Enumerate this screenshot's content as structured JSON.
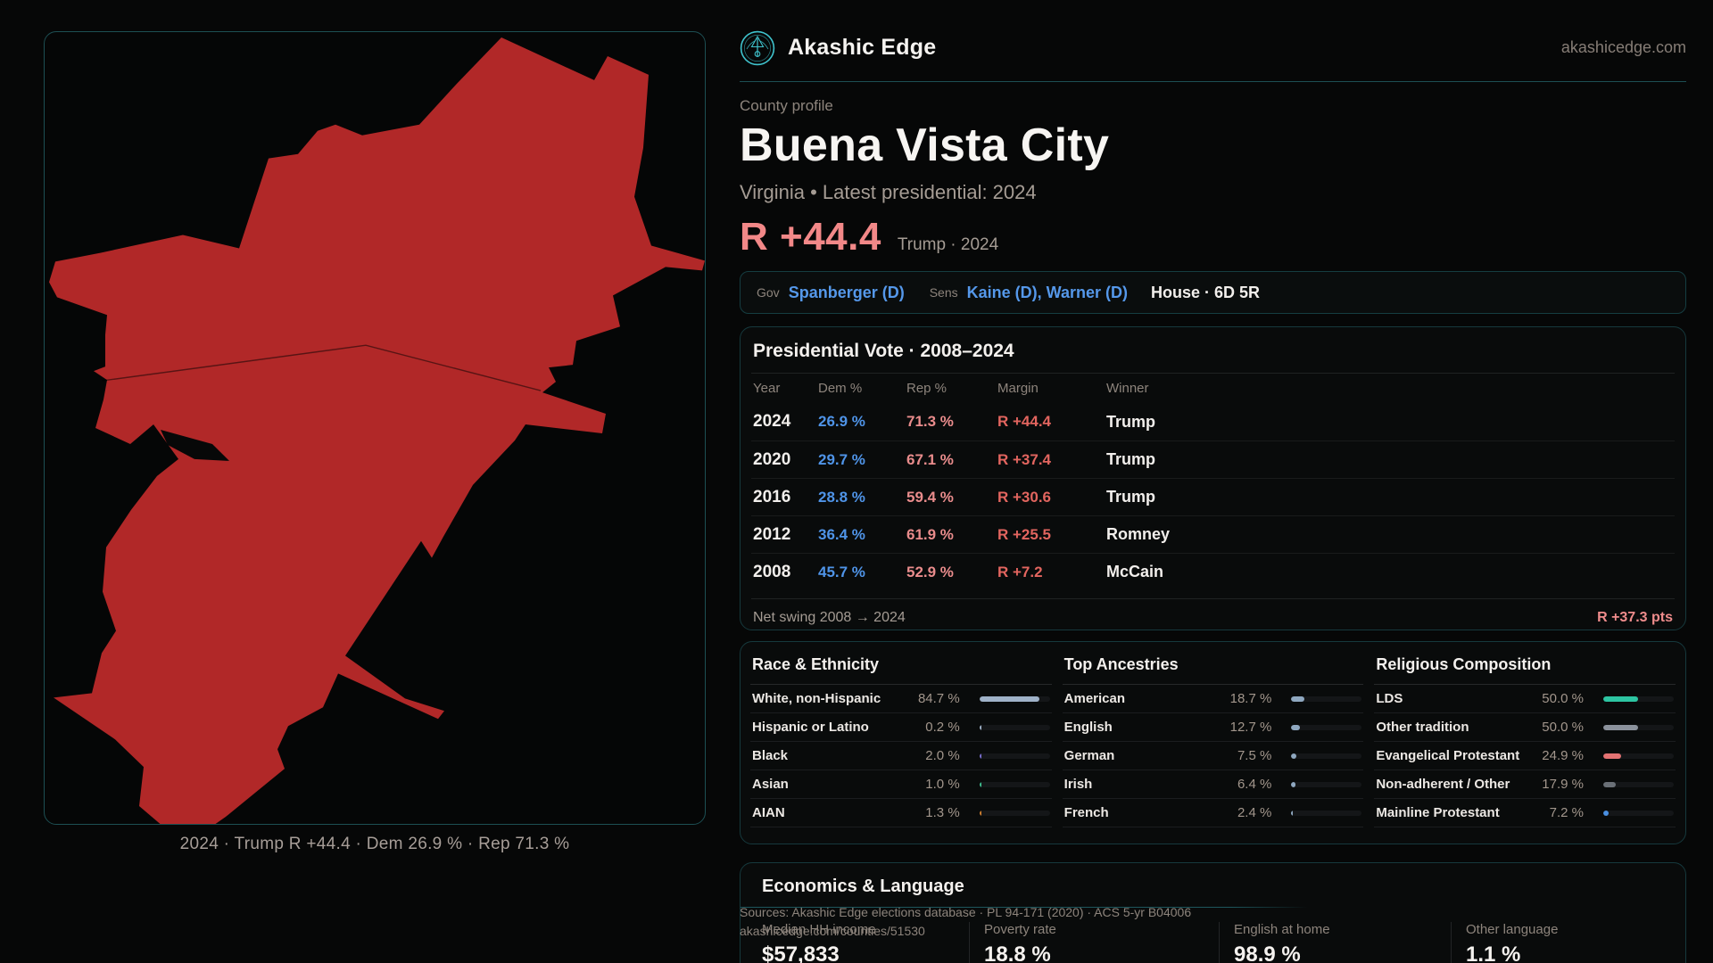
{
  "brand": {
    "name": "Akashic Edge",
    "domain": "akashicedge.com"
  },
  "page": {
    "eyebrow": "County profile",
    "title": "Buena Vista City",
    "subtitle": "Virginia • Latest presidential: 2024",
    "headline_margin": "R +44.4",
    "headline_note": "Trump · 2024"
  },
  "officials": {
    "gov_label": "Gov",
    "gov": "Spanberger (D)",
    "sens_label": "Sens",
    "sens": "Kaine (D), Warner (D)",
    "house": "House · 6D 5R"
  },
  "map": {
    "caption": "2024 · Trump R +44.4 · Dem 26.9 % · Rep 71.3 %",
    "fill_color": "#b12828"
  },
  "presidential": {
    "title": "Presidential Vote · 2008–2024",
    "columns": [
      "Year",
      "Dem %",
      "Rep %",
      "Margin",
      "Winner"
    ],
    "rows": [
      {
        "year": "2024",
        "dem": "26.9 %",
        "rep": "71.3 %",
        "margin": "R +44.4",
        "winner": "Trump"
      },
      {
        "year": "2020",
        "dem": "29.7 %",
        "rep": "67.1 %",
        "margin": "R +37.4",
        "winner": "Trump"
      },
      {
        "year": "2016",
        "dem": "28.8 %",
        "rep": "59.4 %",
        "margin": "R +30.6",
        "winner": "Trump"
      },
      {
        "year": "2012",
        "dem": "36.4 %",
        "rep": "61.9 %",
        "margin": "R +25.5",
        "winner": "Romney"
      },
      {
        "year": "2008",
        "dem": "45.7 %",
        "rep": "52.9 %",
        "margin": "R +7.2",
        "winner": "McCain"
      }
    ],
    "net_swing_label": "Net swing 2008 → 2024",
    "net_swing_value": "R +37.3 pts"
  },
  "panels": [
    {
      "title": "Race & Ethnicity",
      "rows": [
        {
          "label": "White, non-Hispanic",
          "value": "84.7 %",
          "pct": 84.7,
          "color": "#9fb2c8"
        },
        {
          "label": "Hispanic or Latino",
          "value": "0.2 %",
          "pct": 0.2,
          "color": "#9fb2c8"
        },
        {
          "label": "Black",
          "value": "2.0 %",
          "pct": 2.0,
          "color": "#7a6fd0"
        },
        {
          "label": "Asian",
          "value": "1.0 %",
          "pct": 1.0,
          "color": "#3fbf8f"
        },
        {
          "label": "AIAN",
          "value": "1.3 %",
          "pct": 1.3,
          "color": "#cf7f2f"
        }
      ]
    },
    {
      "title": "Top Ancestries",
      "rows": [
        {
          "label": "American",
          "value": "18.7 %",
          "pct": 18.7,
          "color": "#8fa8c0"
        },
        {
          "label": "English",
          "value": "12.7 %",
          "pct": 12.7,
          "color": "#8fa8c0"
        },
        {
          "label": "German",
          "value": "7.5 %",
          "pct": 7.5,
          "color": "#8fa8c0"
        },
        {
          "label": "Irish",
          "value": "6.4 %",
          "pct": 6.4,
          "color": "#8fa8c0"
        },
        {
          "label": "French",
          "value": "2.4 %",
          "pct": 2.4,
          "color": "#8fa8c0"
        }
      ]
    },
    {
      "title": "Religious Composition",
      "rows": [
        {
          "label": "LDS",
          "value": "50.0 %",
          "pct": 50.0,
          "color": "#2dc5a2"
        },
        {
          "label": "Other tradition",
          "value": "50.0 %",
          "pct": 50.0,
          "color": "#8b929c"
        },
        {
          "label": "Evangelical Protestant",
          "value": "24.9 %",
          "pct": 24.9,
          "color": "#e37272"
        },
        {
          "label": "Non-adherent / Other",
          "value": "17.9 %",
          "pct": 17.9,
          "color": "#6a7077"
        },
        {
          "label": "Mainline Protestant",
          "value": "7.2 %",
          "pct": 7.2,
          "color": "#4a90e2"
        }
      ]
    }
  ],
  "economics": {
    "title": "Economics & Language",
    "stats": [
      {
        "label": "Median HH income",
        "value": "$57,833"
      },
      {
        "label": "Poverty rate",
        "value": "18.8 %"
      },
      {
        "label": "English at home",
        "value": "98.9 %"
      },
      {
        "label": "Other language",
        "value": "1.1 %"
      }
    ]
  },
  "sources": {
    "line1": "Sources: Akashic Edge elections database · PL 94-171 (2020) · ACS 5-yr B04006",
    "line2": "akashicedge.com/counties/51530"
  }
}
